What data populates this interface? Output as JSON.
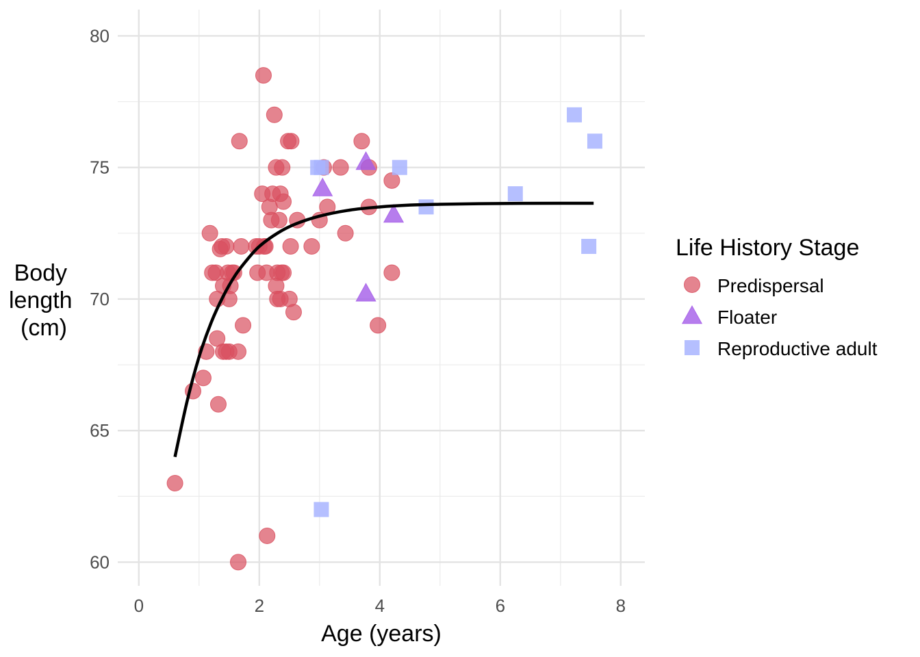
{
  "chart_data": {
    "type": "scatter",
    "title": "",
    "xlabel": "Age (years)",
    "ylabel": [
      "Body",
      "length",
      "(cm)"
    ],
    "xlim": [
      -0.35,
      8.4
    ],
    "ylim": [
      59.1,
      81.0
    ],
    "x_ticks": [
      0,
      2,
      4,
      6,
      8
    ],
    "x_minor": [
      1,
      3,
      5,
      7
    ],
    "y_ticks": [
      60,
      65,
      70,
      75,
      80
    ],
    "y_minor": [
      62.5,
      67.5,
      72.5,
      77.5
    ],
    "grid": true,
    "legend": {
      "title": "Life History Stage",
      "position": "right"
    },
    "series": [
      {
        "name": "Predispersal",
        "shape": "circle",
        "color": "#d9505f",
        "points": [
          [
            0.6,
            63.0
          ],
          [
            0.9,
            66.5
          ],
          [
            1.07,
            67.0
          ],
          [
            1.12,
            68.0
          ],
          [
            1.18,
            72.5
          ],
          [
            1.22,
            71.0
          ],
          [
            1.28,
            71.0
          ],
          [
            1.3,
            70.0
          ],
          [
            1.3,
            68.5
          ],
          [
            1.32,
            66.0
          ],
          [
            1.35,
            71.9
          ],
          [
            1.38,
            72.0
          ],
          [
            1.4,
            70.5
          ],
          [
            1.4,
            68.0
          ],
          [
            1.45,
            68.0
          ],
          [
            1.45,
            72.0
          ],
          [
            1.48,
            71.0
          ],
          [
            1.5,
            70.0
          ],
          [
            1.5,
            68.0
          ],
          [
            1.52,
            70.5
          ],
          [
            1.55,
            71.0
          ],
          [
            1.58,
            71.0
          ],
          [
            1.65,
            60.0
          ],
          [
            1.65,
            68.0
          ],
          [
            1.67,
            76.0
          ],
          [
            1.7,
            72.0
          ],
          [
            1.73,
            69.0
          ],
          [
            1.95,
            72.0
          ],
          [
            1.97,
            71.0
          ],
          [
            2.0,
            72.0
          ],
          [
            2.05,
            74.0
          ],
          [
            2.07,
            78.5
          ],
          [
            2.08,
            72.0
          ],
          [
            2.1,
            72.0
          ],
          [
            2.12,
            71.0
          ],
          [
            2.13,
            61.0
          ],
          [
            2.17,
            73.5
          ],
          [
            2.2,
            73.0
          ],
          [
            2.22,
            74.0
          ],
          [
            2.25,
            77.0
          ],
          [
            2.28,
            75.0
          ],
          [
            2.28,
            70.5
          ],
          [
            2.3,
            70.0
          ],
          [
            2.3,
            71.0
          ],
          [
            2.33,
            73.0
          ],
          [
            2.35,
            74.0
          ],
          [
            2.35,
            70.0
          ],
          [
            2.37,
            71.0
          ],
          [
            2.38,
            75.0
          ],
          [
            2.4,
            73.7
          ],
          [
            2.4,
            71.0
          ],
          [
            2.48,
            76.0
          ],
          [
            2.5,
            70.0
          ],
          [
            2.52,
            72.0
          ],
          [
            2.53,
            76.0
          ],
          [
            2.57,
            69.5
          ],
          [
            2.63,
            73.0
          ],
          [
            2.87,
            72.0
          ],
          [
            3.0,
            73.0
          ],
          [
            3.07,
            75.0
          ],
          [
            3.13,
            73.5
          ],
          [
            3.35,
            75.0
          ],
          [
            3.43,
            72.5
          ],
          [
            3.7,
            76.0
          ],
          [
            3.82,
            75.0
          ],
          [
            3.82,
            73.5
          ],
          [
            3.97,
            69.0
          ],
          [
            4.2,
            74.5
          ],
          [
            4.2,
            71.0
          ]
        ]
      },
      {
        "name": "Floater",
        "shape": "triangle",
        "color": "#a45de8",
        "points": [
          [
            3.05,
            74.2
          ],
          [
            3.77,
            75.2
          ],
          [
            3.77,
            70.2
          ],
          [
            4.23,
            73.2
          ]
        ]
      },
      {
        "name": "Reproductive adult",
        "shape": "square",
        "color": "#a8b4ff",
        "points": [
          [
            2.97,
            75.0
          ],
          [
            3.03,
            75.0
          ],
          [
            3.03,
            62.0
          ],
          [
            4.33,
            75.0
          ],
          [
            4.77,
            73.5
          ],
          [
            6.25,
            74.0
          ],
          [
            7.23,
            77.0
          ],
          [
            7.47,
            72.0
          ],
          [
            7.57,
            76.0
          ]
        ]
      }
    ],
    "fit_curve": {
      "type": "line",
      "color": "#000000",
      "x": [
        0.6,
        0.8,
        1.0,
        1.2,
        1.4,
        1.6,
        1.8,
        2.0,
        2.3,
        2.6,
        3.0,
        3.5,
        4.0,
        4.5,
        5.0,
        6.0,
        7.0,
        7.55
      ],
      "y": [
        64.0,
        66.1,
        67.8,
        69.1,
        70.1,
        70.9,
        71.5,
        72.0,
        72.5,
        72.85,
        73.15,
        73.38,
        73.5,
        73.57,
        73.6,
        73.63,
        73.64,
        73.64
      ]
    }
  }
}
